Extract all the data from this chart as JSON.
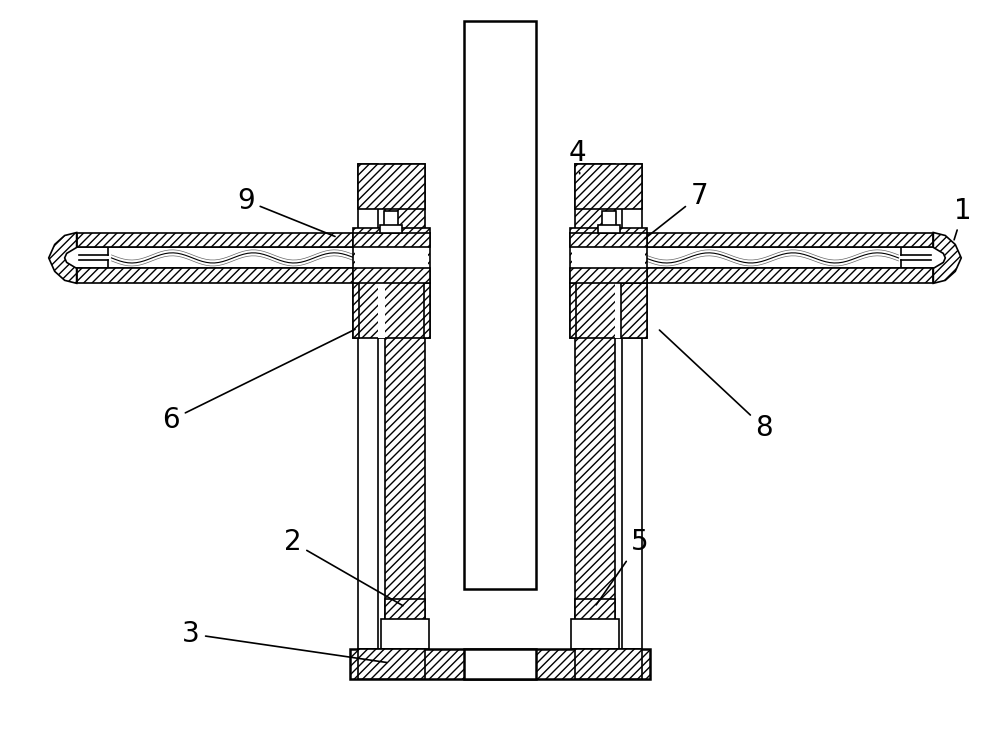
{
  "bg_color": "#ffffff",
  "line_color": "#000000",
  "figsize": [
    10.0,
    7.35
  ],
  "dpi": 100,
  "label_fontsize": 20
}
